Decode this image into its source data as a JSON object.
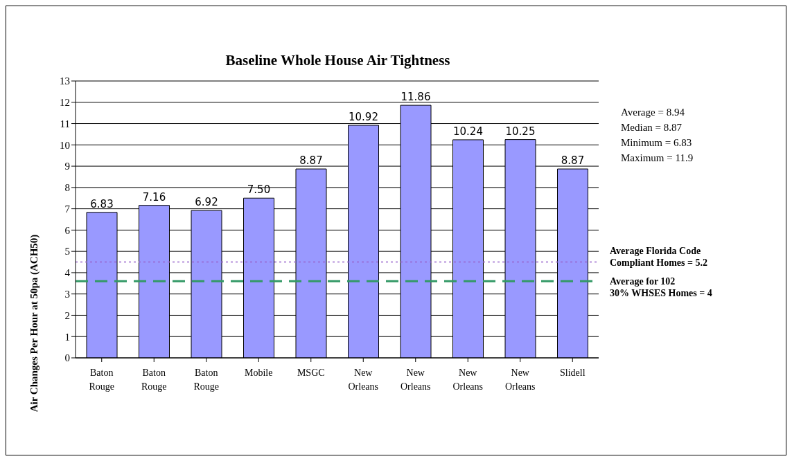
{
  "chart_data": {
    "type": "bar",
    "title": "Baseline Whole House Air Tightness",
    "ylabel": "Air Changes Per Hour at 50pa (ACH50)",
    "categories": [
      "Baton Rouge",
      "Baton Rouge",
      "Baton Rouge",
      "Mobile",
      "MSGC",
      "New Orleans",
      "New Orleans",
      "New Orleans",
      "New Orleans",
      "Slidell"
    ],
    "values": [
      6.83,
      7.16,
      6.92,
      7.5,
      8.87,
      10.92,
      11.86,
      10.24,
      10.25,
      8.87
    ],
    "value_labels": [
      "6.83",
      "7.16",
      "6.92",
      "7.50",
      "8.87",
      "10.92",
      "11.86",
      "10.24",
      "10.25",
      "8.87"
    ],
    "color": "#9999ff",
    "ylim": [
      0,
      13
    ],
    "yticks": [
      0,
      1,
      2,
      3,
      4,
      5,
      6,
      7,
      8,
      9,
      10,
      11,
      12,
      13
    ],
    "grid": "y",
    "ref_lines": [
      {
        "axis": "y",
        "value": 4.5,
        "color": "#9966cc",
        "line_style": "dotted"
      },
      {
        "axis": "y",
        "value": 3.6,
        "color": "#339966",
        "line_style": "dashed"
      }
    ],
    "annotations": [
      "Average = 8.94",
      "Median = 8.87",
      "Minimum = 6.83",
      "Maximum = 11.9",
      "Average Florida Code",
      "Compliant Homes = 5.2",
      "Average for 102",
      "30% WHSES Homes = 4"
    ]
  }
}
